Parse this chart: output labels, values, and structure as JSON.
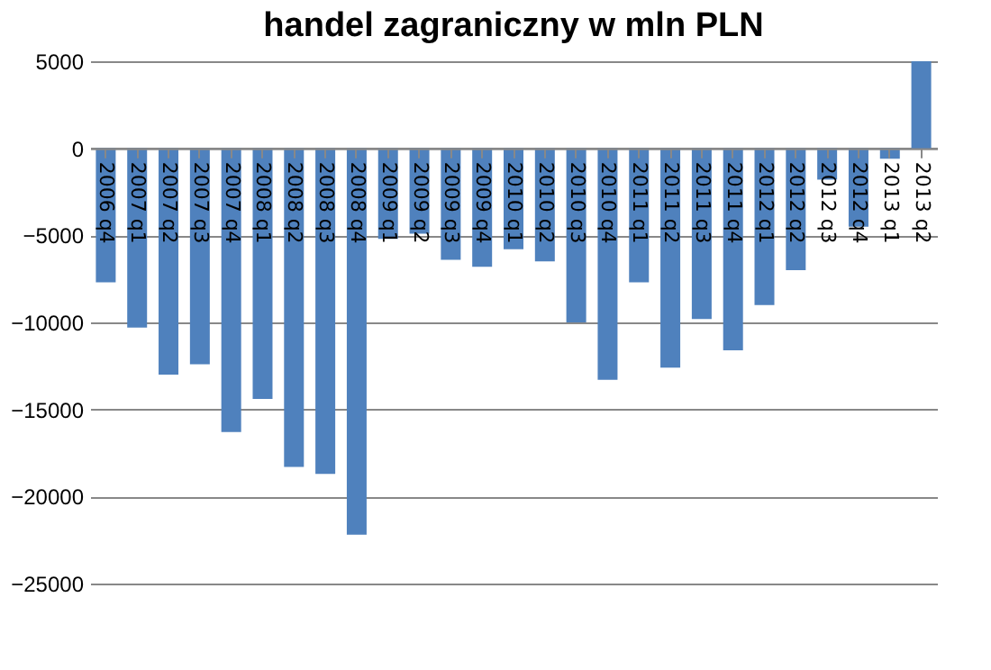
{
  "chart_data": {
    "type": "bar",
    "title": "handel zagraniczny w mln PLN",
    "categories": [
      "2006 q4",
      "2007 q1",
      "2007 q2",
      "2007 q3",
      "2007 q4",
      "2008 q1",
      "2008 q2",
      "2008 q3",
      "2008 q4",
      "2009 q1",
      "2009 q2",
      "2009 q3",
      "2009 q4",
      "2010 q1",
      "2010 q2",
      "2010 q3",
      "2010 q4",
      "2011 q1",
      "2011 q2",
      "2011 q3",
      "2011 q4",
      "2012 q1",
      "2012 q2",
      "2012 q3",
      "2012 q4",
      "2013 q1",
      "2013 q2"
    ],
    "values": [
      -7700,
      -10300,
      -13000,
      -12400,
      -16300,
      -14400,
      -18300,
      -18700,
      -22200,
      -5200,
      -4900,
      -6400,
      -6800,
      -5800,
      -6500,
      -10000,
      -13300,
      -7700,
      -12600,
      -9800,
      -11600,
      -9000,
      -7000,
      -1800,
      -4500,
      -600,
      5000
    ],
    "color": "#4f81bd",
    "ylim": [
      -25000,
      5000
    ],
    "yticks": [
      -25000,
      -20000,
      -15000,
      -10000,
      -5000,
      0,
      5000
    ],
    "grid": "y"
  }
}
